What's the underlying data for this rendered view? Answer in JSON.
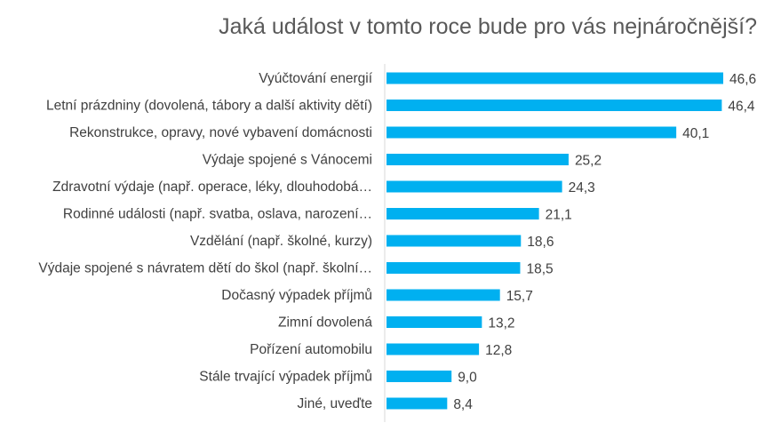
{
  "chart_data": {
    "type": "bar",
    "orientation": "horizontal",
    "title": "Jaká událost v tomto roce bude pro vás nejnáročnější?",
    "xlabel": "",
    "ylabel": "",
    "xlim": [
      0,
      48
    ],
    "grid": false,
    "legend": "none",
    "bar_color": "#00B0F0",
    "categories": [
      "Vyúčtování energií",
      "Letní prázdniny (dovolená, tábory a další aktivity dětí)",
      "Rekonstrukce, opravy, nové vybavení domácnosti",
      "Výdaje spojené s Vánocemi",
      "Zdravotní výdaje (např. operace, léky, dlouhodobá…",
      "Rodinné události (např. svatba, oslava, narození…",
      "Vzdělání (např. školné, kurzy)",
      "Výdaje spojené s návratem dětí do škol (např. školní…",
      "Dočasný výpadek příjmů",
      "Zimní dovolená",
      "Pořízení automobilu",
      "Stále trvající výpadek příjmů",
      "Jiné, uveďte"
    ],
    "values": [
      46.6,
      46.4,
      40.1,
      25.2,
      24.3,
      21.1,
      18.6,
      18.5,
      15.7,
      13.2,
      12.8,
      9.0,
      8.4
    ],
    "value_labels": [
      "46,6",
      "46,4",
      "40,1",
      "25,2",
      "24,3",
      "21,1",
      "18,6",
      "18,5",
      "15,7",
      "13,2",
      "12,8",
      "9,0",
      "8,4"
    ]
  }
}
